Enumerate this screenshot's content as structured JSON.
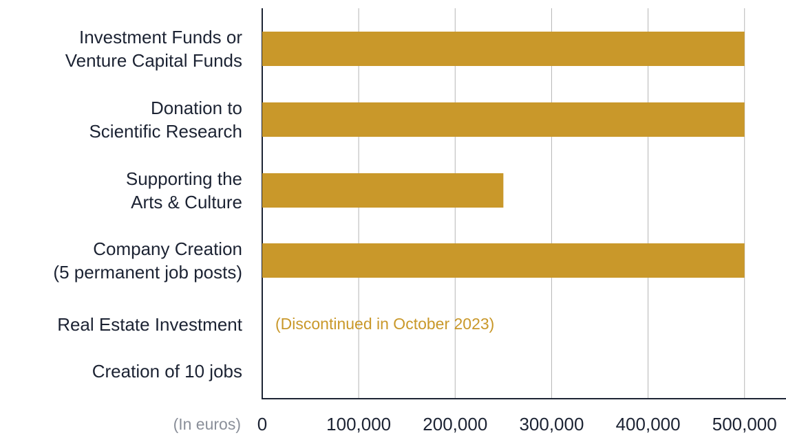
{
  "chart_data": {
    "type": "barh",
    "categories": [
      "Investment Funds or\nVenture Capital Funds",
      "Donation to\nScientific Research",
      "Supporting the\nArts & Culture",
      "Company Creation\n(5 permanent job posts)",
      "Real Estate Investment",
      "Creation of 10 jobs"
    ],
    "values": [
      500000,
      500000,
      250000,
      500000,
      null,
      null
    ],
    "color": "#c9982a",
    "xlim": [
      0,
      543000
    ],
    "xticks": [
      0,
      {
        "value": 100000,
        "label": "100,000"
      },
      {
        "value": 200000,
        "label": "200,000"
      },
      {
        "value": 300000,
        "label": "300,000"
      },
      {
        "value": 400000,
        "label": "400,000"
      },
      {
        "value": 500000,
        "label": "500,000"
      }
    ],
    "xlabel": "(In euros)",
    "annotation": "(Discontinued in October 2023)",
    "grid": true
  }
}
